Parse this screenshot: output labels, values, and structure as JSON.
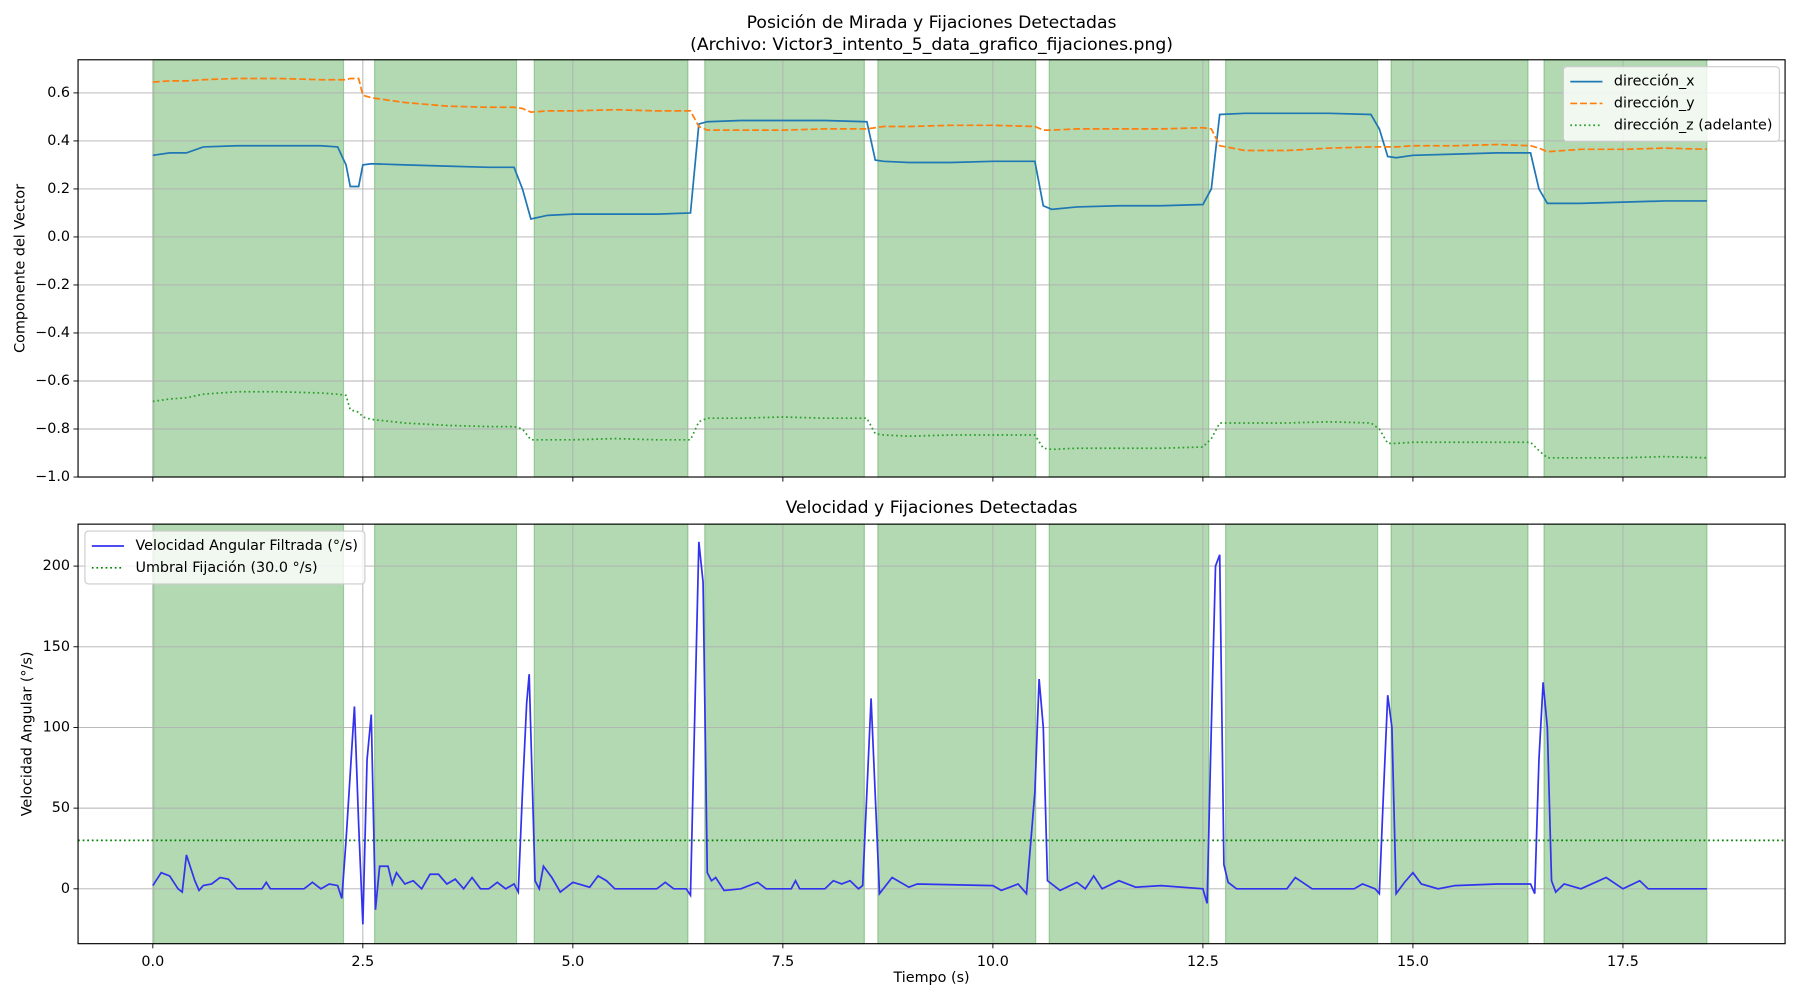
{
  "chart_data": [
    {
      "type": "line",
      "title": "Posición de Mirada y Fijaciones Detectadas",
      "subtitle": "(Archivo: Victor3_intento_5_data_grafico_fijaciones.png)",
      "y_label": "Componente del Vector",
      "xlim": [
        -0.89,
        19.43
      ],
      "ylim": [
        -1.0,
        0.738
      ],
      "xticks": [
        0,
        2.5,
        5,
        7.5,
        10,
        12.5,
        15,
        17.5
      ],
      "yticks": [
        {
          "value": -1.0,
          "label": "−1.0"
        },
        {
          "value": -0.8,
          "label": "−0.8"
        },
        {
          "value": -0.6,
          "label": "−0.6"
        },
        {
          "value": -0.4,
          "label": "−0.4"
        },
        {
          "value": -0.2,
          "label": "−0.2"
        },
        {
          "value": 0,
          "label": "0.0"
        },
        0.2,
        0.4,
        0.6
      ],
      "grid": true,
      "legend": "upper right",
      "fixation_color": "#008000",
      "fixations": [
        [
          0.01,
          2.27
        ],
        [
          2.64,
          4.33
        ],
        [
          4.54,
          6.37
        ],
        [
          6.57,
          8.47
        ],
        [
          8.63,
          10.51
        ],
        [
          10.67,
          12.57
        ],
        [
          12.77,
          14.58
        ],
        [
          14.74,
          16.37
        ],
        [
          16.56,
          18.5
        ]
      ],
      "x": [
        0,
        0.2,
        0.4,
        0.6,
        1.0,
        1.5,
        2.0,
        2.2,
        2.3,
        2.35,
        2.45,
        2.5,
        2.6,
        3.0,
        3.5,
        4.0,
        4.3,
        4.4,
        4.5,
        4.7,
        5.0,
        5.5,
        6.0,
        6.4,
        6.5,
        6.6,
        7.0,
        7.5,
        8.0,
        8.5,
        8.6,
        8.7,
        9.0,
        9.5,
        10.0,
        10.5,
        10.6,
        10.7,
        11.0,
        11.5,
        12.0,
        12.5,
        12.6,
        12.7,
        13.0,
        13.5,
        14.0,
        14.5,
        14.6,
        14.7,
        14.8,
        15.0,
        15.5,
        16.0,
        16.4,
        16.5,
        16.6,
        17.0,
        17.5,
        18.0,
        18.5
      ],
      "series": [
        {
          "name": "dirección_x",
          "color": "#1f77b4",
          "linestyle": "solid",
          "values": [
            0.34,
            0.35,
            0.35,
            0.375,
            0.38,
            0.38,
            0.38,
            0.375,
            0.3,
            0.21,
            0.21,
            0.3,
            0.305,
            0.3,
            0.295,
            0.29,
            0.29,
            0.2,
            0.075,
            0.09,
            0.095,
            0.095,
            0.095,
            0.1,
            0.47,
            0.48,
            0.485,
            0.485,
            0.485,
            0.48,
            0.32,
            0.315,
            0.31,
            0.31,
            0.315,
            0.315,
            0.13,
            0.115,
            0.125,
            0.13,
            0.13,
            0.135,
            0.2,
            0.51,
            0.515,
            0.515,
            0.515,
            0.51,
            0.45,
            0.335,
            0.33,
            0.34,
            0.345,
            0.35,
            0.35,
            0.2,
            0.14,
            0.14,
            0.145,
            0.15,
            0.15
          ]
        },
        {
          "name": "dirección_y",
          "color": "#ff7f0e",
          "linestyle": "dashed",
          "values": [
            0.645,
            0.65,
            0.65,
            0.655,
            0.66,
            0.66,
            0.655,
            0.655,
            0.655,
            0.66,
            0.66,
            0.59,
            0.58,
            0.56,
            0.545,
            0.54,
            0.54,
            0.535,
            0.52,
            0.525,
            0.525,
            0.53,
            0.525,
            0.525,
            0.46,
            0.445,
            0.445,
            0.445,
            0.45,
            0.45,
            0.455,
            0.46,
            0.46,
            0.465,
            0.465,
            0.46,
            0.445,
            0.445,
            0.45,
            0.45,
            0.45,
            0.455,
            0.45,
            0.38,
            0.36,
            0.36,
            0.37,
            0.375,
            0.375,
            0.375,
            0.375,
            0.38,
            0.38,
            0.385,
            0.38,
            0.37,
            0.355,
            0.365,
            0.365,
            0.37,
            0.365
          ]
        },
        {
          "name": "dirección_z (adelante)",
          "color": "#2ca02c",
          "linestyle": "dotted",
          "values": [
            -0.685,
            -0.675,
            -0.67,
            -0.655,
            -0.645,
            -0.645,
            -0.65,
            -0.655,
            -0.66,
            -0.72,
            -0.73,
            -0.75,
            -0.76,
            -0.775,
            -0.785,
            -0.79,
            -0.79,
            -0.8,
            -0.845,
            -0.845,
            -0.845,
            -0.84,
            -0.845,
            -0.845,
            -0.77,
            -0.755,
            -0.755,
            -0.75,
            -0.755,
            -0.755,
            -0.82,
            -0.825,
            -0.83,
            -0.825,
            -0.825,
            -0.825,
            -0.88,
            -0.885,
            -0.88,
            -0.88,
            -0.88,
            -0.875,
            -0.84,
            -0.775,
            -0.775,
            -0.775,
            -0.77,
            -0.775,
            -0.8,
            -0.86,
            -0.86,
            -0.855,
            -0.855,
            -0.855,
            -0.855,
            -0.89,
            -0.92,
            -0.92,
            -0.92,
            -0.915,
            -0.92
          ]
        }
      ],
      "hlines": []
    },
    {
      "type": "line",
      "title": "Velocidad y Fijaciones Detectadas",
      "x_label": "Tiempo (s)",
      "y_label": "Velocidad Angular (°/s)",
      "xlim": [
        -0.89,
        19.43
      ],
      "ylim": [
        -34,
        226
      ],
      "xticks": [
        {
          "value": 0,
          "label": "0.0"
        },
        {
          "value": 2.5,
          "label": "2.5"
        },
        {
          "value": 5,
          "label": "5.0"
        },
        {
          "value": 7.5,
          "label": "7.5"
        },
        {
          "value": 10,
          "label": "10.0"
        },
        {
          "value": 12.5,
          "label": "12.5"
        },
        {
          "value": 15,
          "label": "15.0"
        },
        {
          "value": 17.5,
          "label": "17.5"
        }
      ],
      "yticks": [
        0,
        50,
        100,
        150,
        200
      ],
      "grid": true,
      "legend": "upper left",
      "fixation_color": "#008000",
      "fixations": [
        [
          0.01,
          2.27
        ],
        [
          2.64,
          4.33
        ],
        [
          4.54,
          6.37
        ],
        [
          6.57,
          8.47
        ],
        [
          8.63,
          10.51
        ],
        [
          10.67,
          12.57
        ],
        [
          12.77,
          14.58
        ],
        [
          14.74,
          16.37
        ],
        [
          16.56,
          18.5
        ]
      ],
      "x": [
        0,
        0.1,
        0.2,
        0.3,
        0.35,
        0.4,
        0.5,
        0.55,
        0.6,
        0.7,
        0.8,
        0.9,
        1.0,
        1.3,
        1.35,
        1.4,
        1.8,
        1.9,
        2.0,
        2.1,
        2.2,
        2.25,
        2.3,
        2.4,
        2.45,
        2.5,
        2.55,
        2.6,
        2.65,
        2.7,
        2.8,
        2.85,
        2.9,
        3.0,
        3.1,
        3.2,
        3.3,
        3.4,
        3.5,
        3.6,
        3.7,
        3.8,
        3.9,
        4.0,
        4.1,
        4.2,
        4.3,
        4.35,
        4.4,
        4.45,
        4.48,
        4.55,
        4.6,
        4.65,
        4.75,
        4.85,
        5.0,
        5.2,
        5.3,
        5.4,
        5.5,
        6.0,
        6.1,
        6.2,
        6.35,
        6.4,
        6.5,
        6.55,
        6.6,
        6.65,
        6.7,
        6.8,
        7.0,
        7.2,
        7.3,
        7.6,
        7.65,
        7.7,
        8.0,
        8.1,
        8.2,
        8.3,
        8.4,
        8.45,
        8.5,
        8.55,
        8.65,
        8.8,
        9.0,
        9.1,
        10.0,
        10.1,
        10.3,
        10.4,
        10.5,
        10.55,
        10.6,
        10.65,
        10.8,
        11.0,
        11.1,
        11.2,
        11.3,
        11.5,
        11.7,
        12.0,
        12.5,
        12.55,
        12.6,
        12.65,
        12.7,
        12.75,
        12.8,
        12.9,
        13.5,
        13.6,
        13.8,
        14.3,
        14.4,
        14.55,
        14.6,
        14.65,
        14.7,
        14.75,
        14.8,
        14.9,
        15.0,
        15.1,
        15.3,
        15.5,
        16.0,
        16.4,
        16.45,
        16.5,
        16.55,
        16.6,
        16.65,
        16.7,
        16.8,
        17.0,
        17.3,
        17.5,
        17.7,
        17.8,
        18.0,
        18.5
      ],
      "series": [
        {
          "name": "Velocidad Angular Filtrada (°/s)",
          "color": "#3333ee",
          "linestyle": "solid",
          "values": [
            2,
            10,
            8,
            0,
            -2,
            21,
            5,
            -1,
            2,
            3,
            7,
            6,
            0,
            0,
            4,
            0,
            0,
            4,
            0,
            3,
            2,
            -6,
            30,
            113,
            40,
            -22,
            80,
            108,
            -13,
            14,
            14,
            3,
            10,
            3,
            5,
            0,
            9,
            9,
            3,
            6,
            0,
            7,
            0,
            0,
            4,
            0,
            3,
            -2,
            60,
            115,
            133,
            5,
            0,
            14,
            7,
            -2,
            4,
            1,
            8,
            5,
            0,
            0,
            4,
            0,
            0,
            -4,
            215,
            190,
            10,
            5,
            7,
            -1,
            0,
            4,
            0,
            0,
            5,
            0,
            0,
            5,
            3,
            5,
            0,
            2,
            60,
            118,
            -3,
            7,
            1,
            3,
            2,
            -1,
            3,
            -3,
            60,
            130,
            100,
            5,
            -1,
            4,
            0,
            8,
            0,
            5,
            1,
            2,
            0,
            -9,
            100,
            200,
            207,
            15,
            4,
            0,
            0,
            7,
            0,
            0,
            3,
            0,
            -3,
            60,
            120,
            100,
            -3,
            4,
            10,
            3,
            0,
            2,
            3,
            3,
            -3,
            80,
            128,
            100,
            5,
            -2,
            3,
            0,
            7,
            0,
            5,
            0,
            0,
            0
          ]
        }
      ],
      "hlines": [
        {
          "name": "Umbral Fijación (30.0 °/s)",
          "value": 30,
          "color": "#008000"
        }
      ]
    }
  ]
}
